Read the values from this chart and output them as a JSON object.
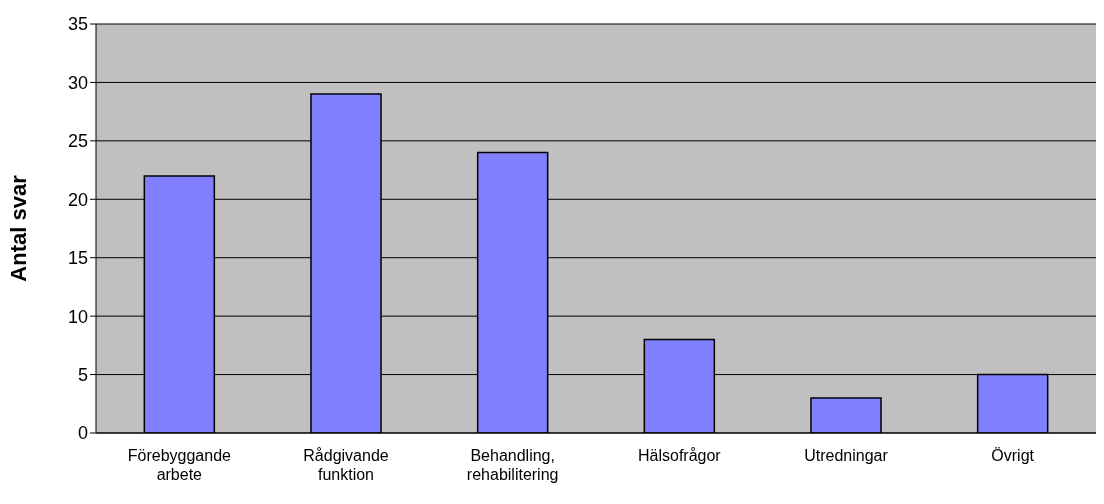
{
  "chart_data": {
    "type": "bar",
    "ylabel": "Antal svar",
    "categories": [
      "Förebyggande arbete",
      "Rådgivande funktion",
      "Behandling, rehabilitering",
      "Hälsofrågor",
      "Utredningar",
      "Övrigt"
    ],
    "values": [
      22,
      29,
      24,
      8,
      3,
      5
    ],
    "color": "#8080ff",
    "ylim": [
      0,
      35
    ],
    "yticks": [
      0,
      5,
      10,
      15,
      20,
      25,
      30,
      35
    ],
    "grid": "y",
    "legend": false
  }
}
